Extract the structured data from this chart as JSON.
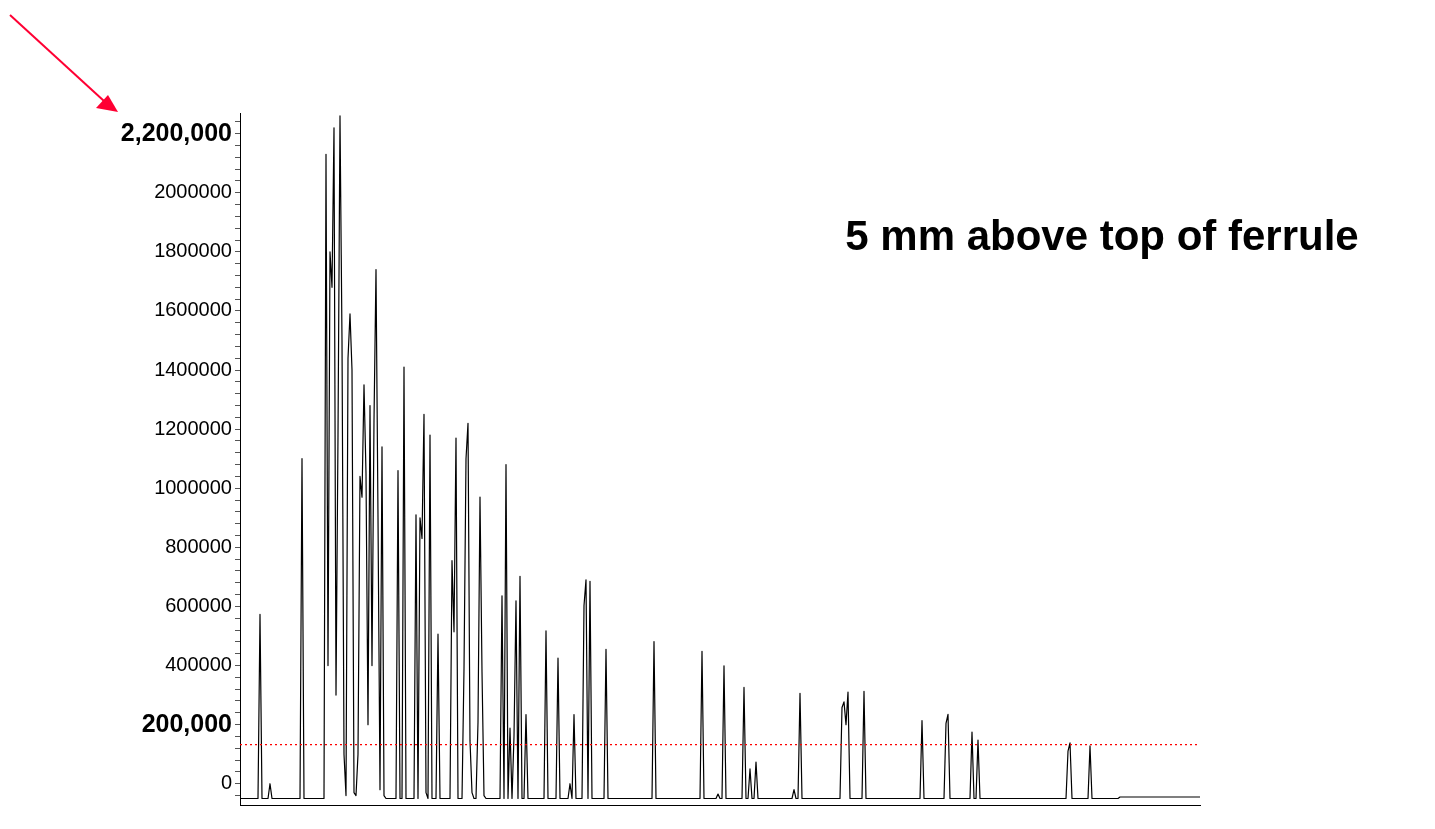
{
  "chart_data": {
    "type": "line",
    "title": "5 mm above top of ferrule",
    "categories": [
      null,
      null,
      null,
      null,
      null,
      null,
      null,
      null,
      null,
      null,
      null,
      null,
      null,
      null,
      null,
      null,
      null,
      null,
      null,
      null,
      null,
      null,
      null,
      null,
      null,
      null,
      null,
      null,
      null,
      null,
      null,
      null,
      null,
      null,
      null,
      null,
      null,
      null,
      null,
      null,
      null,
      null,
      null,
      null,
      null,
      null,
      null,
      null,
      null,
      null,
      null,
      null,
      null,
      null,
      null,
      null,
      null,
      null,
      null,
      null,
      null,
      null,
      null,
      null,
      null,
      null,
      null,
      null,
      null,
      null,
      null,
      null,
      null,
      null,
      null,
      null,
      null,
      null,
      null,
      null,
      null,
      null,
      null,
      null,
      null,
      null,
      null,
      null,
      null,
      null,
      null,
      null,
      null,
      null,
      null,
      null,
      null,
      null,
      null,
      null,
      null,
      null,
      null,
      null,
      null,
      null,
      null,
      null,
      null,
      null,
      null,
      null,
      null,
      null,
      null,
      null,
      null,
      null,
      null,
      null,
      null,
      null,
      null,
      null,
      null,
      null,
      null,
      null,
      null,
      null,
      null,
      null,
      null,
      null,
      null,
      null,
      null,
      null,
      null,
      null,
      null,
      null,
      null,
      null,
      null,
      null,
      null,
      null,
      null,
      null,
      null,
      null,
      null,
      null,
      null,
      null,
      null,
      null,
      null,
      null,
      null,
      null,
      null,
      null,
      null,
      null,
      null,
      null,
      null,
      null,
      null,
      null,
      null,
      null,
      null,
      null,
      null,
      null,
      null,
      null,
      null,
      null,
      null,
      null,
      null,
      null,
      null,
      null,
      null,
      null,
      null,
      null,
      null,
      null,
      null,
      null,
      null,
      null,
      null,
      null,
      null,
      null,
      null,
      null,
      null,
      null,
      null,
      null,
      null,
      null,
      null,
      null,
      null,
      null,
      null,
      null,
      null,
      null,
      null,
      null,
      null,
      null,
      null,
      null,
      null,
      null,
      null,
      null,
      null,
      null,
      null,
      null,
      null,
      null,
      null,
      null,
      null,
      null,
      null,
      null,
      null,
      null,
      null,
      null,
      null,
      null,
      null,
      null,
      null,
      null,
      null,
      null,
      null,
      null,
      null,
      null,
      null,
      null,
      null,
      null,
      null,
      null,
      null,
      null,
      null,
      null,
      null,
      null,
      null,
      null,
      null,
      null,
      null,
      null,
      null,
      null,
      null,
      null,
      null,
      null,
      null,
      null,
      null,
      null,
      null,
      null,
      null,
      null,
      null,
      null,
      null,
      null,
      null,
      null,
      null,
      null,
      null,
      null,
      null,
      null,
      null,
      null,
      null,
      null,
      null,
      null,
      null,
      null,
      null,
      null,
      null,
      null,
      null,
      null,
      null,
      null,
      null,
      null,
      null,
      null,
      null,
      null,
      null,
      null,
      null,
      null,
      null,
      null,
      null,
      null,
      null,
      null,
      null,
      null,
      null,
      null,
      null,
      null,
      null,
      null,
      null,
      null,
      null,
      null,
      null,
      null,
      null,
      null,
      null,
      null,
      null,
      null,
      null,
      null,
      null,
      null,
      null,
      null,
      null,
      null,
      null,
      null,
      null,
      null,
      null,
      null,
      null,
      null,
      null,
      null,
      null,
      null,
      null,
      null,
      null,
      null,
      null,
      null,
      null,
      null,
      null,
      null,
      null,
      null,
      null,
      null,
      null,
      null,
      null,
      null,
      null,
      null,
      null,
      null,
      null,
      null,
      null,
      null,
      null,
      null,
      null,
      null,
      null,
      null,
      null,
      null,
      null,
      null,
      null,
      null,
      null,
      null,
      null,
      null,
      null,
      null,
      null,
      null,
      null,
      null,
      null,
      null,
      null,
      null,
      null,
      null,
      null,
      null,
      null,
      null,
      null,
      null,
      null,
      null,
      null,
      null,
      null,
      null,
      null,
      null,
      null,
      null,
      null,
      null,
      null,
      null,
      null,
      null,
      null,
      null,
      null,
      null,
      null,
      null,
      null,
      null,
      null,
      null,
      null,
      null,
      null,
      null,
      null,
      null,
      null,
      null,
      null,
      null,
      null,
      null,
      null,
      null,
      null,
      null,
      null,
      null,
      null,
      null,
      null,
      null,
      null
    ],
    "series": [
      {
        "color": "#000000",
        "values": [
          -50000,
          -50000,
          -50000,
          -50000,
          -50000,
          -50000,
          -50000,
          -50000,
          -50000,
          -50000,
          573000,
          -50000,
          -50000,
          -50000,
          -50000,
          0,
          -50000,
          -50000,
          -50000,
          -50000,
          -50000,
          -50000,
          -50000,
          -50000,
          -50000,
          -50000,
          -50000,
          -50000,
          -50000,
          -50000,
          -50000,
          1100000,
          -50000,
          -50000,
          -50000,
          -50000,
          -50000,
          -50000,
          -50000,
          -50000,
          -50000,
          -50000,
          -50000,
          2130000,
          400000,
          1800000,
          1680000,
          2220000,
          300000,
          1180000,
          2260000,
          1500000,
          100000,
          -40000,
          1440000,
          1590000,
          1400000,
          -30000,
          -40000,
          100000,
          1040000,
          970000,
          1350000,
          1050000,
          200000,
          1280000,
          400000,
          1230000,
          1740000,
          900000,
          -20000,
          1140000,
          -40000,
          -50000,
          -50000,
          -50000,
          -50000,
          -50000,
          -50000,
          1060000,
          -50000,
          -50000,
          1410000,
          -50000,
          -50000,
          -50000,
          -50000,
          -50000,
          910000,
          -50000,
          900000,
          830000,
          1250000,
          -30000,
          -50000,
          1180000,
          -50000,
          -50000,
          -50000,
          506000,
          -50000,
          -50000,
          -50000,
          -50000,
          -50000,
          -50000,
          755000,
          514000,
          1170000,
          -50000,
          -50000,
          -50000,
          389000,
          1100000,
          1220000,
          145000,
          -30000,
          -50000,
          -50000,
          208000,
          970000,
          379000,
          -40000,
          -50000,
          -50000,
          -50000,
          -50000,
          -50000,
          -50000,
          -50000,
          -50000,
          636000,
          -50000,
          1080000,
          -50000,
          188000,
          -50000,
          161000,
          619000,
          -50000,
          702000,
          -50000,
          -50000,
          234000,
          -50000,
          -50000,
          -50000,
          -50000,
          -50000,
          -50000,
          -50000,
          -50000,
          -50000,
          517000,
          -50000,
          -50000,
          -50000,
          -50000,
          -50000,
          425000,
          -50000,
          -50000,
          -50000,
          -50000,
          -50000,
          0,
          -50000,
          234000,
          -50000,
          -50000,
          -50000,
          -50000,
          603000,
          690000,
          -50000,
          685000,
          -50000,
          -50000,
          -50000,
          -50000,
          -50000,
          -50000,
          -50000,
          455000,
          -50000,
          -50000,
          -50000,
          -50000,
          -50000,
          -50000,
          -50000,
          -50000,
          -50000,
          -50000,
          -50000,
          -50000,
          -50000,
          -50000,
          -50000,
          -50000,
          -50000,
          -50000,
          -50000,
          -50000,
          -50000,
          -50000,
          -50000,
          481000,
          -50000,
          -50000,
          -50000,
          -50000,
          -50000,
          -50000,
          -50000,
          -50000,
          -50000,
          -50000,
          -50000,
          -50000,
          -50000,
          -50000,
          -50000,
          -50000,
          -50000,
          -50000,
          -50000,
          -50000,
          -50000,
          -50000,
          -50000,
          448000,
          -50000,
          -50000,
          -50000,
          -50000,
          -50000,
          -50000,
          -50000,
          -35000,
          -50000,
          -50000,
          399000,
          -50000,
          -50000,
          -50000,
          -50000,
          -50000,
          -50000,
          -50000,
          -50000,
          -50000,
          326000,
          -50000,
          -50000,
          50000,
          -50000,
          -50000,
          73000,
          -50000,
          -50000,
          -50000,
          -50000,
          -50000,
          -50000,
          -50000,
          -50000,
          -50000,
          -50000,
          -50000,
          -50000,
          -50000,
          -50000,
          -50000,
          -50000,
          -50000,
          -50000,
          -20000,
          -50000,
          -50000,
          306000,
          -50000,
          -50000,
          -50000,
          -50000,
          -50000,
          -50000,
          -50000,
          -50000,
          -50000,
          -50000,
          -50000,
          -50000,
          -50000,
          -50000,
          -50000,
          -50000,
          -50000,
          -50000,
          -50000,
          -50000,
          258000,
          277000,
          200000,
          310000,
          -50000,
          -50000,
          -50000,
          -50000,
          -50000,
          -50000,
          -50000,
          313000,
          -50000,
          -50000,
          -50000,
          -50000,
          -50000,
          -50000,
          -50000,
          -50000,
          -50000,
          -50000,
          -50000,
          -50000,
          -50000,
          -50000,
          -50000,
          -50000,
          -50000,
          -50000,
          -50000,
          -50000,
          -50000,
          -50000,
          -50000,
          -50000,
          -50000,
          -50000,
          -50000,
          -50000,
          214000,
          -50000,
          -50000,
          -50000,
          -50000,
          -50000,
          -50000,
          -50000,
          -50000,
          -50000,
          -50000,
          -50000,
          204000,
          235000,
          -50000,
          -50000,
          -50000,
          -50000,
          -50000,
          -50000,
          -50000,
          -50000,
          -50000,
          -50000,
          -50000,
          175000,
          -50000,
          -50000,
          148000,
          -50000,
          -50000,
          -50000,
          -50000,
          -50000,
          -50000,
          -50000,
          -50000,
          -50000,
          -50000,
          -50000,
          -50000,
          -50000,
          -50000,
          -50000,
          -50000,
          -50000,
          -50000,
          -50000,
          -50000,
          -50000,
          -50000,
          -50000,
          -50000,
          -50000,
          -50000,
          -50000,
          -50000,
          -50000,
          -50000,
          -50000,
          -50000,
          -50000,
          -50000,
          -50000,
          -50000,
          -50000,
          -50000,
          -50000,
          -50000,
          -50000,
          -50000,
          -50000,
          -50000,
          110000,
          138000,
          -50000,
          -50000,
          -50000,
          -50000,
          -50000,
          -50000,
          -50000,
          -50000,
          -50000,
          128000,
          -50000,
          -50000,
          -50000,
          -50000,
          -50000,
          -50000,
          -50000,
          -50000,
          -50000,
          -50000,
          -50000,
          -50000,
          -50000,
          -50000,
          -45000,
          -45000,
          -45000,
          -45000,
          -45000,
          -45000,
          -45000,
          -45000,
          -45000,
          -45000,
          -45000,
          -45000,
          -45000,
          -45000,
          -45000,
          -45000,
          -45000,
          -45000,
          -45000,
          -45000,
          -45000,
          -45000,
          -45000,
          -45000,
          -45000,
          -45000,
          -45000,
          -45000,
          -45000,
          -45000,
          -45000,
          -45000,
          -45000,
          -45000,
          -45000,
          -45000,
          -45000,
          -45000,
          -45000,
          -45000,
          -45000
        ]
      }
    ],
    "ylim": [
      -72000,
      2270000
    ],
    "yticks": [
      {
        "value": -40000,
        "label": null
      },
      0,
      {
        "value": 40000,
        "label": null
      },
      {
        "value": 80000,
        "label": null
      },
      {
        "value": 120000,
        "label": null
      },
      {
        "value": 160000,
        "label": null
      },
      {
        "value": 200000,
        "label": "200,000"
      },
      {
        "value": 240000,
        "label": null
      },
      {
        "value": 280000,
        "label": null
      },
      {
        "value": 320000,
        "label": null
      },
      {
        "value": 360000,
        "label": null
      },
      400000,
      {
        "value": 440000,
        "label": null
      },
      {
        "value": 480000,
        "label": null
      },
      {
        "value": 520000,
        "label": null
      },
      {
        "value": 560000,
        "label": null
      },
      600000,
      {
        "value": 640000,
        "label": null
      },
      {
        "value": 680000,
        "label": null
      },
      {
        "value": 720000,
        "label": null
      },
      {
        "value": 760000,
        "label": null
      },
      800000,
      {
        "value": 840000,
        "label": null
      },
      {
        "value": 880000,
        "label": null
      },
      {
        "value": 920000,
        "label": null
      },
      {
        "value": 960000,
        "label": null
      },
      1000000,
      {
        "value": 1040000,
        "label": null
      },
      {
        "value": 1080000,
        "label": null
      },
      {
        "value": 1120000,
        "label": null
      },
      {
        "value": 1160000,
        "label": null
      },
      1200000,
      {
        "value": 1240000,
        "label": null
      },
      {
        "value": 1280000,
        "label": null
      },
      {
        "value": 1320000,
        "label": null
      },
      {
        "value": 1360000,
        "label": null
      },
      1400000,
      {
        "value": 1440000,
        "label": null
      },
      {
        "value": 1480000,
        "label": null
      },
      {
        "value": 1520000,
        "label": null
      },
      {
        "value": 1560000,
        "label": null
      },
      1600000,
      {
        "value": 1640000,
        "label": null
      },
      {
        "value": 1680000,
        "label": null
      },
      {
        "value": 1720000,
        "label": null
      },
      {
        "value": 1760000,
        "label": null
      },
      1800000,
      {
        "value": 1840000,
        "label": null
      },
      {
        "value": 1880000,
        "label": null
      },
      {
        "value": 1920000,
        "label": null
      },
      {
        "value": 1960000,
        "label": null
      },
      2000000,
      {
        "value": 2040000,
        "label": null
      },
      {
        "value": 2080000,
        "label": null
      },
      {
        "value": 2120000,
        "label": null
      },
      {
        "value": 2160000,
        "label": null
      },
      {
        "value": 2200000,
        "label": "2,200,000"
      },
      {
        "value": 2240000,
        "label": null
      }
    ],
    "ref_lines": [
      {
        "axis": "y",
        "value": 132000,
        "color": "#ff0000",
        "line_style": "dotted"
      }
    ],
    "legend": false,
    "grid": false,
    "marker": "none",
    "line_style": "solid"
  }
}
